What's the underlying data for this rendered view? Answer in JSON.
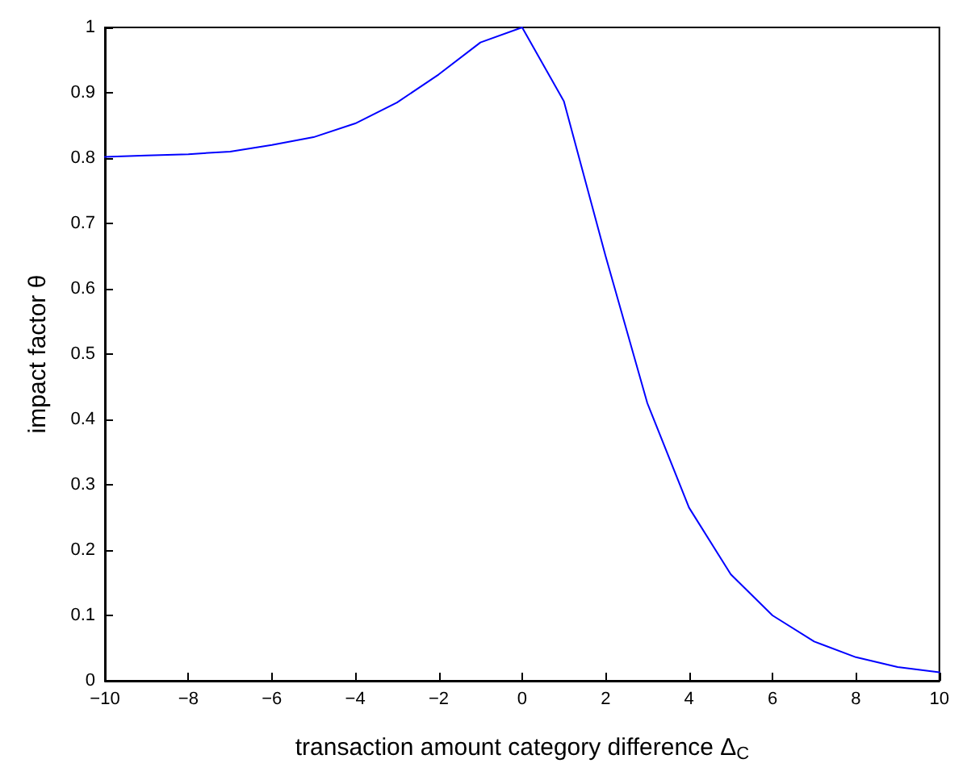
{
  "chart_data": {
    "type": "line",
    "xlabel": "transaction amount category difference Δ$_{C}$",
    "ylabel": "impact factor θ",
    "x": [
      -10,
      -9,
      -8,
      -7,
      -6,
      -5,
      -4,
      -3,
      -2,
      -1,
      0,
      1,
      2,
      3,
      4,
      5,
      6,
      7,
      8,
      9,
      10
    ],
    "series": [
      {
        "color": "#0000ff",
        "values": [
          0.802,
          0.804,
          0.806,
          0.81,
          0.82,
          0.832,
          0.853,
          0.885,
          0.928,
          0.977,
          1,
          0.887,
          0.65,
          0.425,
          0.265,
          0.163,
          0.1,
          0.06,
          0.036,
          0.021,
          0.013
        ]
      }
    ],
    "xlim": [
      -10,
      10
    ],
    "xticks": [
      {
        "value": -10,
        "label": "−10"
      },
      {
        "value": -8,
        "label": "−8"
      },
      {
        "value": -6,
        "label": "−6"
      },
      {
        "value": -4,
        "label": "−4"
      },
      {
        "value": -2,
        "label": "−2"
      },
      0,
      2,
      4,
      6,
      8,
      10
    ],
    "ylim": [
      0,
      1
    ],
    "yticks": [
      0,
      0.1,
      0.2,
      0.3,
      0.4,
      0.5,
      0.6,
      0.7,
      0.8,
      0.9,
      1
    ],
    "grid": false,
    "marker": "none",
    "line_style": "solid"
  }
}
